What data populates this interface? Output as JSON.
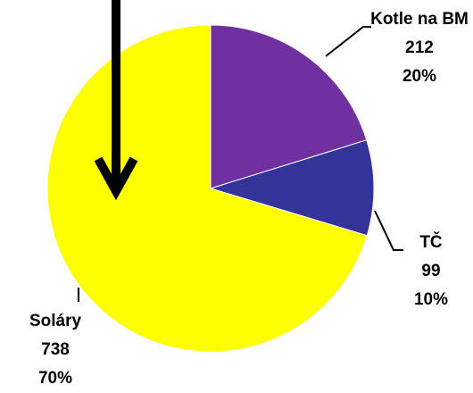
{
  "chart_data": {
    "type": "pie",
    "categories": [
      "Kotle na BM",
      "TČ",
      "Soláry"
    ],
    "values": [
      212,
      99,
      738
    ],
    "percent_labels": [
      "20%",
      "10%",
      "70%"
    ],
    "colors": [
      "#7030a0",
      "#333399",
      "#ffff00"
    ]
  }
}
